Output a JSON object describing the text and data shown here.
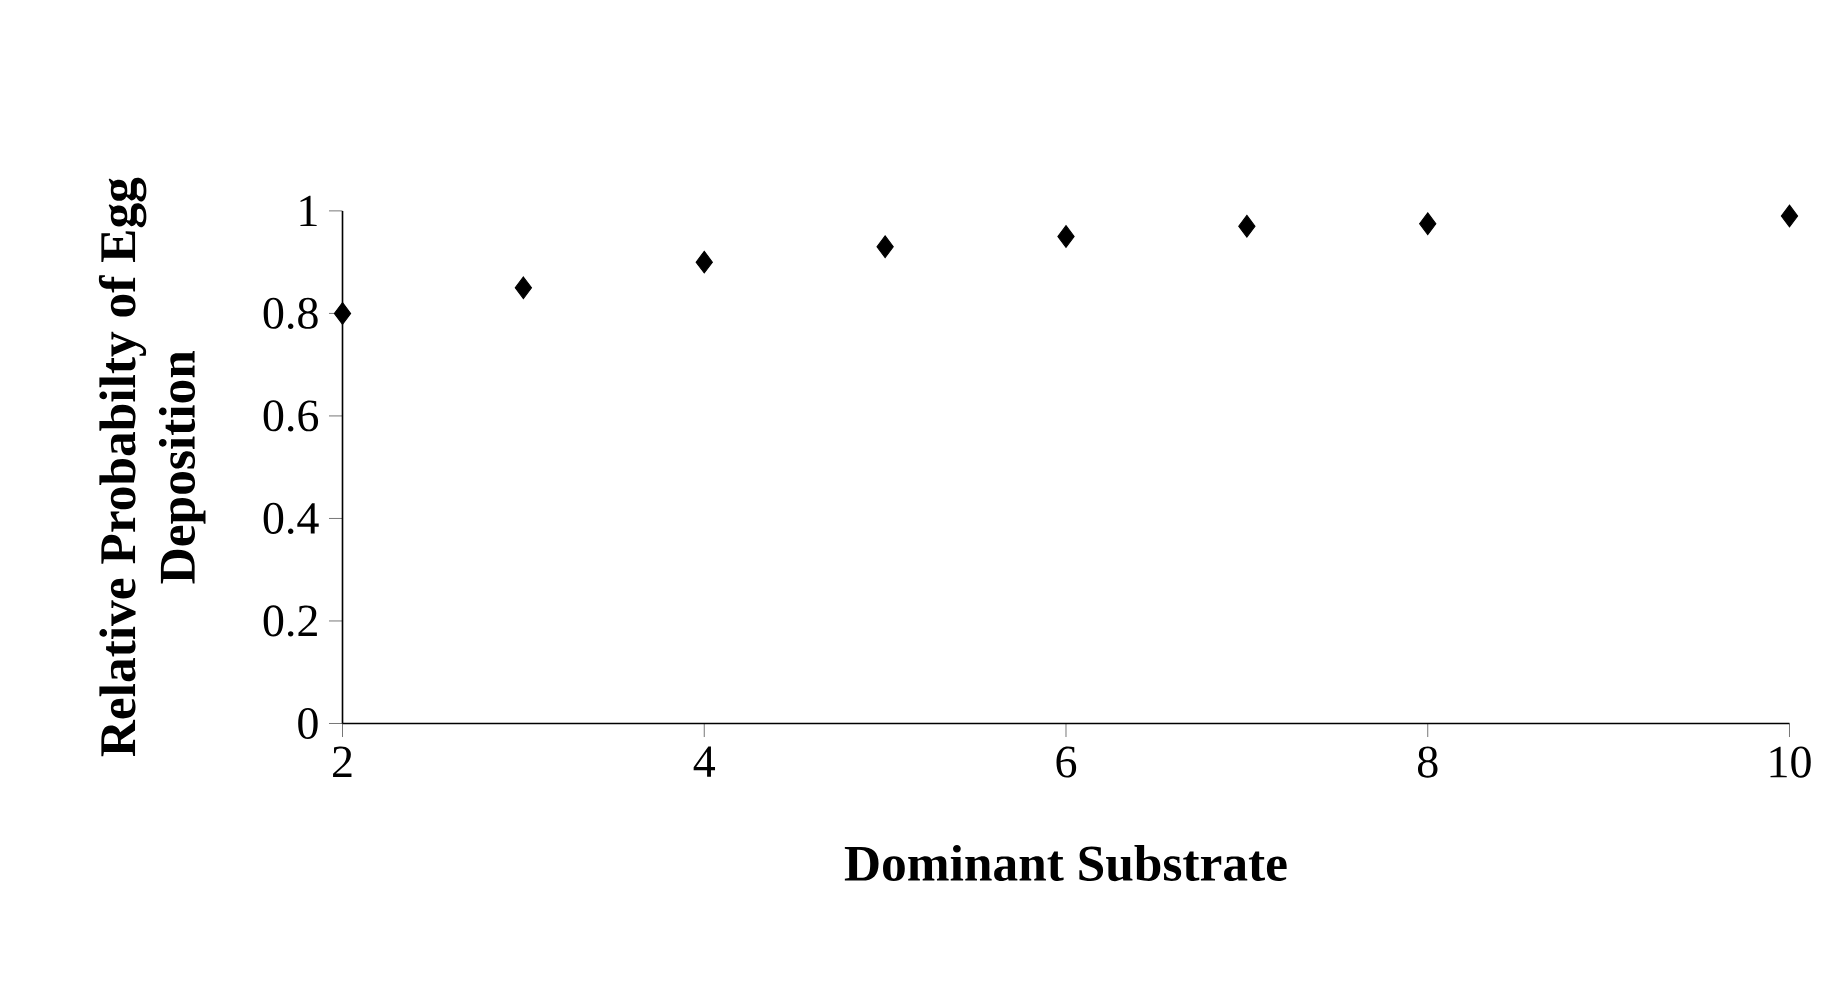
{
  "chart_data": {
    "type": "scatter",
    "xlabel": "Dominant Substrate",
    "ylabel": "Relative Probabilty of Egg Deposition",
    "x": [
      2,
      3,
      4,
      5,
      6,
      7,
      8,
      10
    ],
    "values": [
      0.8,
      0.85,
      0.9,
      0.93,
      0.95,
      0.97,
      0.975,
      0.99
    ],
    "color": "#000000",
    "marker": "diamond",
    "xlim": [
      2,
      10
    ],
    "xticks": [
      2,
      4,
      6,
      8,
      10
    ],
    "ylim": [
      0,
      1
    ],
    "yticks": [
      0,
      0.2,
      0.4,
      0.6,
      0.8,
      1
    ]
  }
}
